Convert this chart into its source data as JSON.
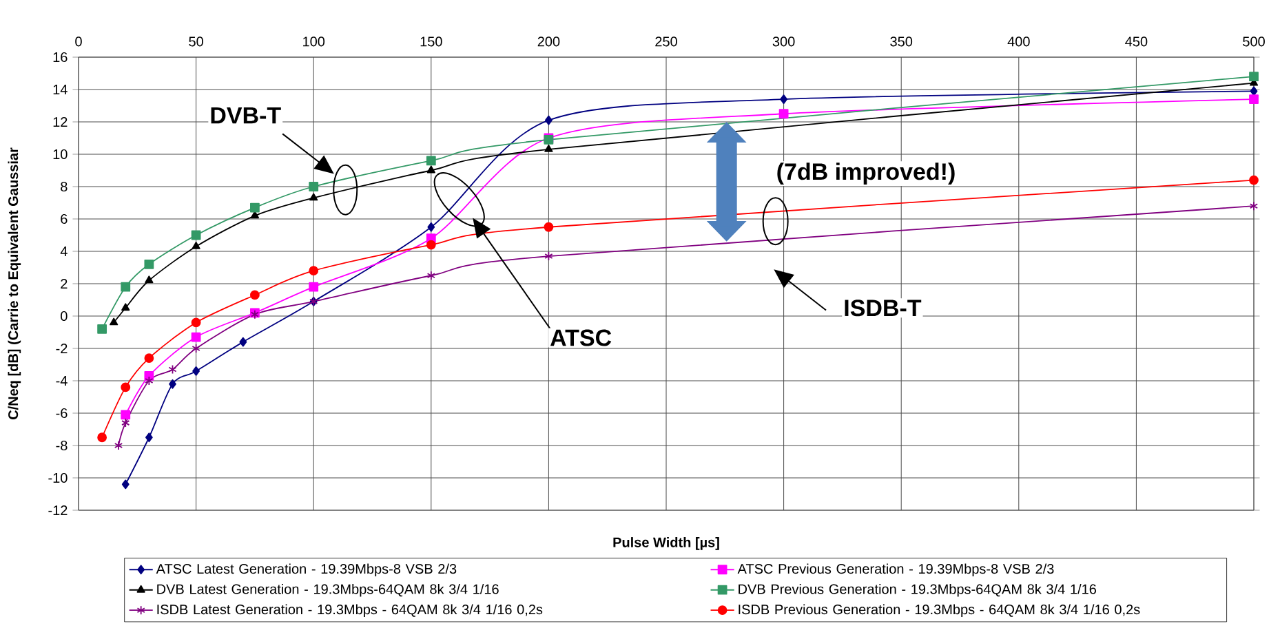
{
  "chart_data": {
    "type": "line",
    "xlabel": "Pulse Width [µs]",
    "ylabel": "C/Neq [dB] (Carrie to Equivalent Gaussiar",
    "xlim": [
      0,
      500
    ],
    "xticks": [
      0,
      50,
      100,
      150,
      200,
      250,
      300,
      350,
      400,
      450,
      500
    ],
    "ylim": [
      -12,
      16
    ],
    "yticks": [
      -12,
      -10,
      -8,
      -6,
      -4,
      -2,
      0,
      2,
      4,
      6,
      8,
      10,
      12,
      14,
      16
    ],
    "grid": true,
    "legend": "bottom",
    "line_style": "solid",
    "series": [
      {
        "name": "ATSC Latest Generation - 19.39Mbps-8 VSB 2/3",
        "color": "#000080",
        "marker": "diamond",
        "x": [
          20,
          30,
          40,
          50,
          70,
          100,
          150,
          200,
          300,
          500
        ],
        "values": [
          -10.4,
          -7.5,
          -4.2,
          -3.4,
          -1.6,
          0.9,
          5.5,
          12.1,
          13.4,
          13.9
        ]
      },
      {
        "name": "ATSC Previous Generation - 19.39Mbps-8 VSB 2/3",
        "color": "#ff00ff",
        "marker": "square",
        "x": [
          20,
          30,
          50,
          75,
          100,
          150,
          200,
          300,
          500
        ],
        "values": [
          -6.1,
          -3.7,
          -1.3,
          0.2,
          1.8,
          4.8,
          11.0,
          12.5,
          13.4
        ]
      },
      {
        "name": "DVB Latest Generation - 19.3Mbps-64QAM 8k 3/4 1/16",
        "color": "#000000",
        "marker": "triangle",
        "x": [
          15,
          20,
          30,
          50,
          75,
          100,
          150,
          200,
          500
        ],
        "values": [
          -0.4,
          0.5,
          2.2,
          4.3,
          6.2,
          7.3,
          9.0,
          10.3,
          14.4
        ]
      },
      {
        "name": "DVB Previous Generation - 19.3Mbps-64QAM 8k 3/4 1/16",
        "color": "#339966",
        "marker": "square",
        "x": [
          10,
          20,
          30,
          50,
          75,
          100,
          150,
          200,
          500
        ],
        "values": [
          -0.8,
          1.8,
          3.2,
          5.0,
          6.7,
          8.0,
          9.6,
          10.9,
          14.8
        ]
      },
      {
        "name": "ISDB Latest Generation - 19.3Mbps - 64QAM 8k 3/4 1/16 0,2s",
        "color": "#800080",
        "marker": "cross",
        "x": [
          17,
          20,
          30,
          40,
          50,
          75,
          100,
          150,
          200,
          500
        ],
        "values": [
          -8.0,
          -6.6,
          -4.0,
          -3.3,
          -2.0,
          0.1,
          0.9,
          2.5,
          3.7,
          6.8
        ]
      },
      {
        "name": "ISDB Previous Generation - 19.3Mbps - 64QAM 8k 3/4 1/16 0,2s",
        "color": "#ff0000",
        "marker": "circle",
        "x": [
          10,
          20,
          30,
          50,
          75,
          100,
          150,
          200,
          500
        ],
        "values": [
          -7.5,
          -4.4,
          -2.6,
          -0.4,
          1.3,
          2.8,
          4.4,
          5.5,
          8.4
        ]
      }
    ],
    "annotations": [
      "DVB-T",
      {
        "text": "ATSC",
        "x": 171.5,
        "y": 5.2
      },
      "ISDB-T",
      "(7dB improved!)"
    ]
  }
}
